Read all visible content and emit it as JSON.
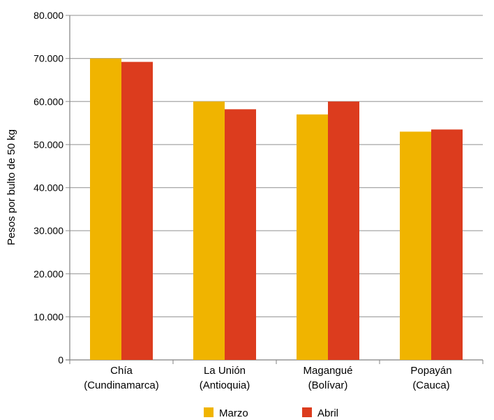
{
  "chart_data": {
    "type": "bar",
    "title": "",
    "xlabel": "",
    "ylabel": "Pesos por bulto de 50 kg",
    "ylim": [
      0,
      80000
    ],
    "yticks": [
      0,
      10000,
      20000,
      30000,
      40000,
      50000,
      60000,
      70000,
      80000
    ],
    "ytick_labels": [
      "0",
      "10.000",
      "20.000",
      "30.000",
      "40.000",
      "50.000",
      "60.000",
      "70.000",
      "80.000"
    ],
    "grid": true,
    "legend": "bottom",
    "categories": [
      [
        "Chía",
        "(Cundinamarca)"
      ],
      [
        "La Unión",
        "(Antioquia)"
      ],
      [
        "Magangué",
        "(Bolívar)"
      ],
      [
        "Popayán",
        "(Cauca)"
      ]
    ],
    "series": [
      {
        "name": "Marzo",
        "color": "#F0B400",
        "values": [
          70000,
          60000,
          57000,
          53000
        ]
      },
      {
        "name": "Abril",
        "color": "#DC3C1E",
        "values": [
          69200,
          58200,
          60000,
          53500
        ]
      }
    ]
  }
}
